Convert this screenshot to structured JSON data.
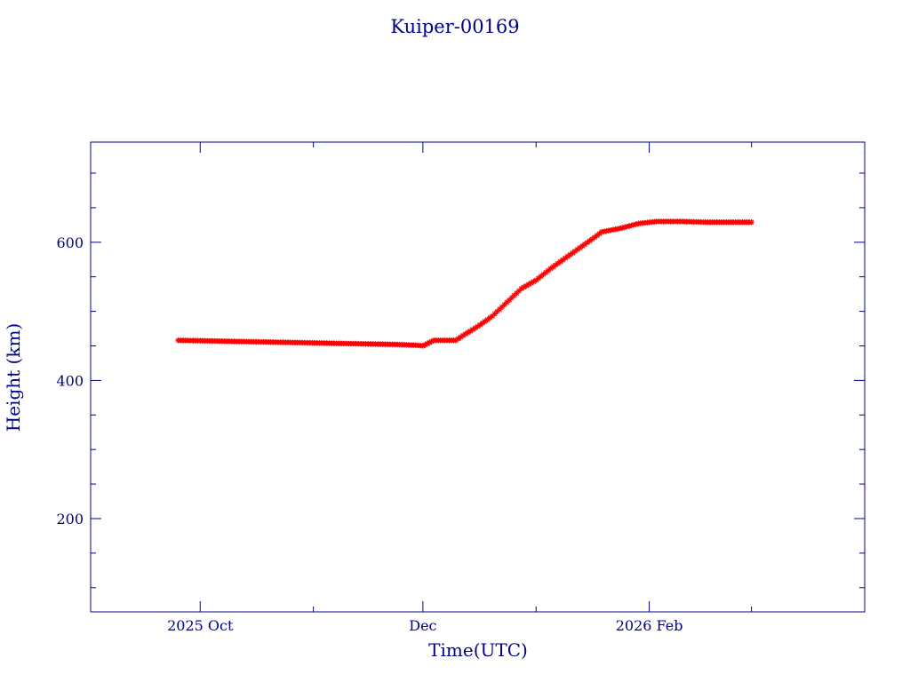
{
  "chart_data": {
    "type": "scatter",
    "title": "Kuiper-00169",
    "xlabel": "Time(UTC)",
    "ylabel": "Height (km)",
    "x_ticks": [
      {
        "date": "2025-10-01",
        "label": "2025 Oct"
      },
      {
        "date": "2025-12-01",
        "label": "Dec"
      },
      {
        "date": "2026-02-01",
        "label": "2026 Feb"
      }
    ],
    "xlim": [
      "2025-09-01",
      "2026-04-01"
    ],
    "y_ticks": [
      200,
      400,
      600
    ],
    "ylim": [
      65,
      745
    ],
    "grid": false,
    "colors": {
      "axes": "#00008b",
      "series": "#ff0000",
      "secondary": "#5f9ea0"
    },
    "series": [
      {
        "marker": "star",
        "color": "#ff0000",
        "points": [
          {
            "x": "2025-09-25",
            "y": 458
          },
          {
            "x": "2025-10-05",
            "y": 457
          },
          {
            "x": "2025-10-15",
            "y": 456
          },
          {
            "x": "2025-10-25",
            "y": 455
          },
          {
            "x": "2025-11-04",
            "y": 454
          },
          {
            "x": "2025-11-14",
            "y": 453
          },
          {
            "x": "2025-11-24",
            "y": 452
          },
          {
            "x": "2025-11-29",
            "y": 451
          },
          {
            "x": "2025-12-01",
            "y": 450
          },
          {
            "x": "2025-12-04",
            "y": 458
          },
          {
            "x": "2025-12-07",
            "y": 458
          },
          {
            "x": "2025-12-10",
            "y": 458
          },
          {
            "x": "2025-12-12",
            "y": 465
          },
          {
            "x": "2025-12-16",
            "y": 478
          },
          {
            "x": "2025-12-20",
            "y": 493
          },
          {
            "x": "2025-12-24",
            "y": 513
          },
          {
            "x": "2025-12-28",
            "y": 533
          },
          {
            "x": "2026-01-01",
            "y": 545
          },
          {
            "x": "2026-01-05",
            "y": 562
          },
          {
            "x": "2026-01-09",
            "y": 577
          },
          {
            "x": "2026-01-13",
            "y": 592
          },
          {
            "x": "2026-01-17",
            "y": 607
          },
          {
            "x": "2026-01-19",
            "y": 615
          },
          {
            "x": "2026-01-24",
            "y": 620
          },
          {
            "x": "2026-01-29",
            "y": 627
          },
          {
            "x": "2026-02-03",
            "y": 630
          },
          {
            "x": "2026-02-10",
            "y": 630
          },
          {
            "x": "2026-02-17",
            "y": 629
          },
          {
            "x": "2026-02-24",
            "y": 629
          },
          {
            "x": "2026-03-01",
            "y": 629
          }
        ]
      }
    ]
  }
}
